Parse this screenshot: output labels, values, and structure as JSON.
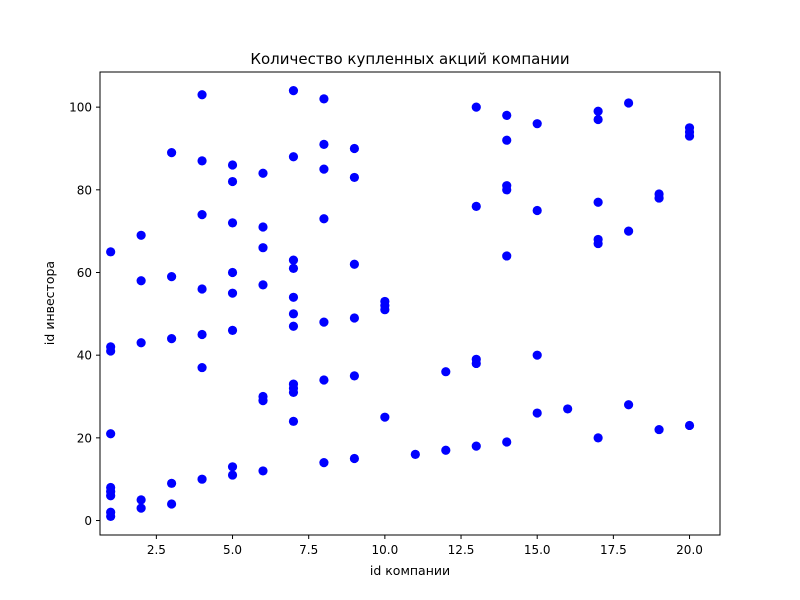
{
  "chart_data": {
    "type": "scatter",
    "title": "Количество купленных акций компании",
    "xlabel": "id компании",
    "ylabel": "id инвестора",
    "xlim": [
      0.65,
      21.0
    ],
    "ylim": [
      -3.5,
      108.5
    ],
    "x_ticks": [
      2.5,
      5.0,
      7.5,
      10.0,
      12.5,
      15.0,
      17.5,
      20.0
    ],
    "x_tick_labels": [
      "2.5",
      "5.0",
      "7.5",
      "10.0",
      "12.5",
      "15.0",
      "17.5",
      "20.0"
    ],
    "y_ticks": [
      0,
      20,
      40,
      60,
      80,
      100
    ],
    "y_tick_labels": [
      "0",
      "20",
      "40",
      "60",
      "80",
      "100"
    ],
    "grid": false,
    "marker_color": "#0000ff",
    "points": [
      [
        1,
        65
      ],
      [
        1,
        42
      ],
      [
        1,
        41
      ],
      [
        1,
        21
      ],
      [
        1,
        8
      ],
      [
        1,
        7
      ],
      [
        1,
        6
      ],
      [
        1,
        2
      ],
      [
        1,
        1
      ],
      [
        2,
        69
      ],
      [
        2,
        58
      ],
      [
        2,
        43
      ],
      [
        2,
        5
      ],
      [
        2,
        3
      ],
      [
        3,
        89
      ],
      [
        3,
        59
      ],
      [
        3,
        44
      ],
      [
        3,
        9
      ],
      [
        3,
        4
      ],
      [
        4,
        103
      ],
      [
        4,
        87
      ],
      [
        4,
        74
      ],
      [
        4,
        56
      ],
      [
        4,
        45
      ],
      [
        4,
        37
      ],
      [
        4,
        10
      ],
      [
        5,
        86
      ],
      [
        5,
        82
      ],
      [
        5,
        72
      ],
      [
        5,
        60
      ],
      [
        5,
        55
      ],
      [
        5,
        46
      ],
      [
        5,
        13
      ],
      [
        5,
        11
      ],
      [
        6,
        84
      ],
      [
        6,
        71
      ],
      [
        6,
        66
      ],
      [
        6,
        57
      ],
      [
        6,
        30
      ],
      [
        6,
        29
      ],
      [
        6,
        12
      ],
      [
        7,
        104
      ],
      [
        7,
        88
      ],
      [
        7,
        63
      ],
      [
        7,
        61
      ],
      [
        7,
        54
      ],
      [
        7,
        50
      ],
      [
        7,
        47
      ],
      [
        7,
        33
      ],
      [
        7,
        32
      ],
      [
        7,
        31
      ],
      [
        7,
        24
      ],
      [
        8,
        102
      ],
      [
        8,
        91
      ],
      [
        8,
        85
      ],
      [
        8,
        73
      ],
      [
        8,
        48
      ],
      [
        8,
        34
      ],
      [
        8,
        14
      ],
      [
        9,
        90
      ],
      [
        9,
        83
      ],
      [
        9,
        62
      ],
      [
        9,
        49
      ],
      [
        9,
        35
      ],
      [
        9,
        15
      ],
      [
        10,
        53
      ],
      [
        10,
        52
      ],
      [
        10,
        51
      ],
      [
        10,
        25
      ],
      [
        11,
        16
      ],
      [
        12,
        36
      ],
      [
        12,
        17
      ],
      [
        13,
        100
      ],
      [
        13,
        76
      ],
      [
        13,
        39
      ],
      [
        13,
        38
      ],
      [
        13,
        18
      ],
      [
        14,
        98
      ],
      [
        14,
        92
      ],
      [
        14,
        81
      ],
      [
        14,
        80
      ],
      [
        14,
        64
      ],
      [
        14,
        19
      ],
      [
        15,
        96
      ],
      [
        15,
        75
      ],
      [
        15,
        40
      ],
      [
        15,
        26
      ],
      [
        16,
        27
      ],
      [
        17,
        99
      ],
      [
        17,
        97
      ],
      [
        17,
        77
      ],
      [
        17,
        68
      ],
      [
        17,
        67
      ],
      [
        17,
        20
      ],
      [
        18,
        101
      ],
      [
        18,
        70
      ],
      [
        18,
        28
      ],
      [
        19,
        79
      ],
      [
        19,
        78
      ],
      [
        19,
        22
      ],
      [
        20,
        95
      ],
      [
        20,
        94
      ],
      [
        20,
        93
      ],
      [
        20,
        23
      ]
    ]
  }
}
